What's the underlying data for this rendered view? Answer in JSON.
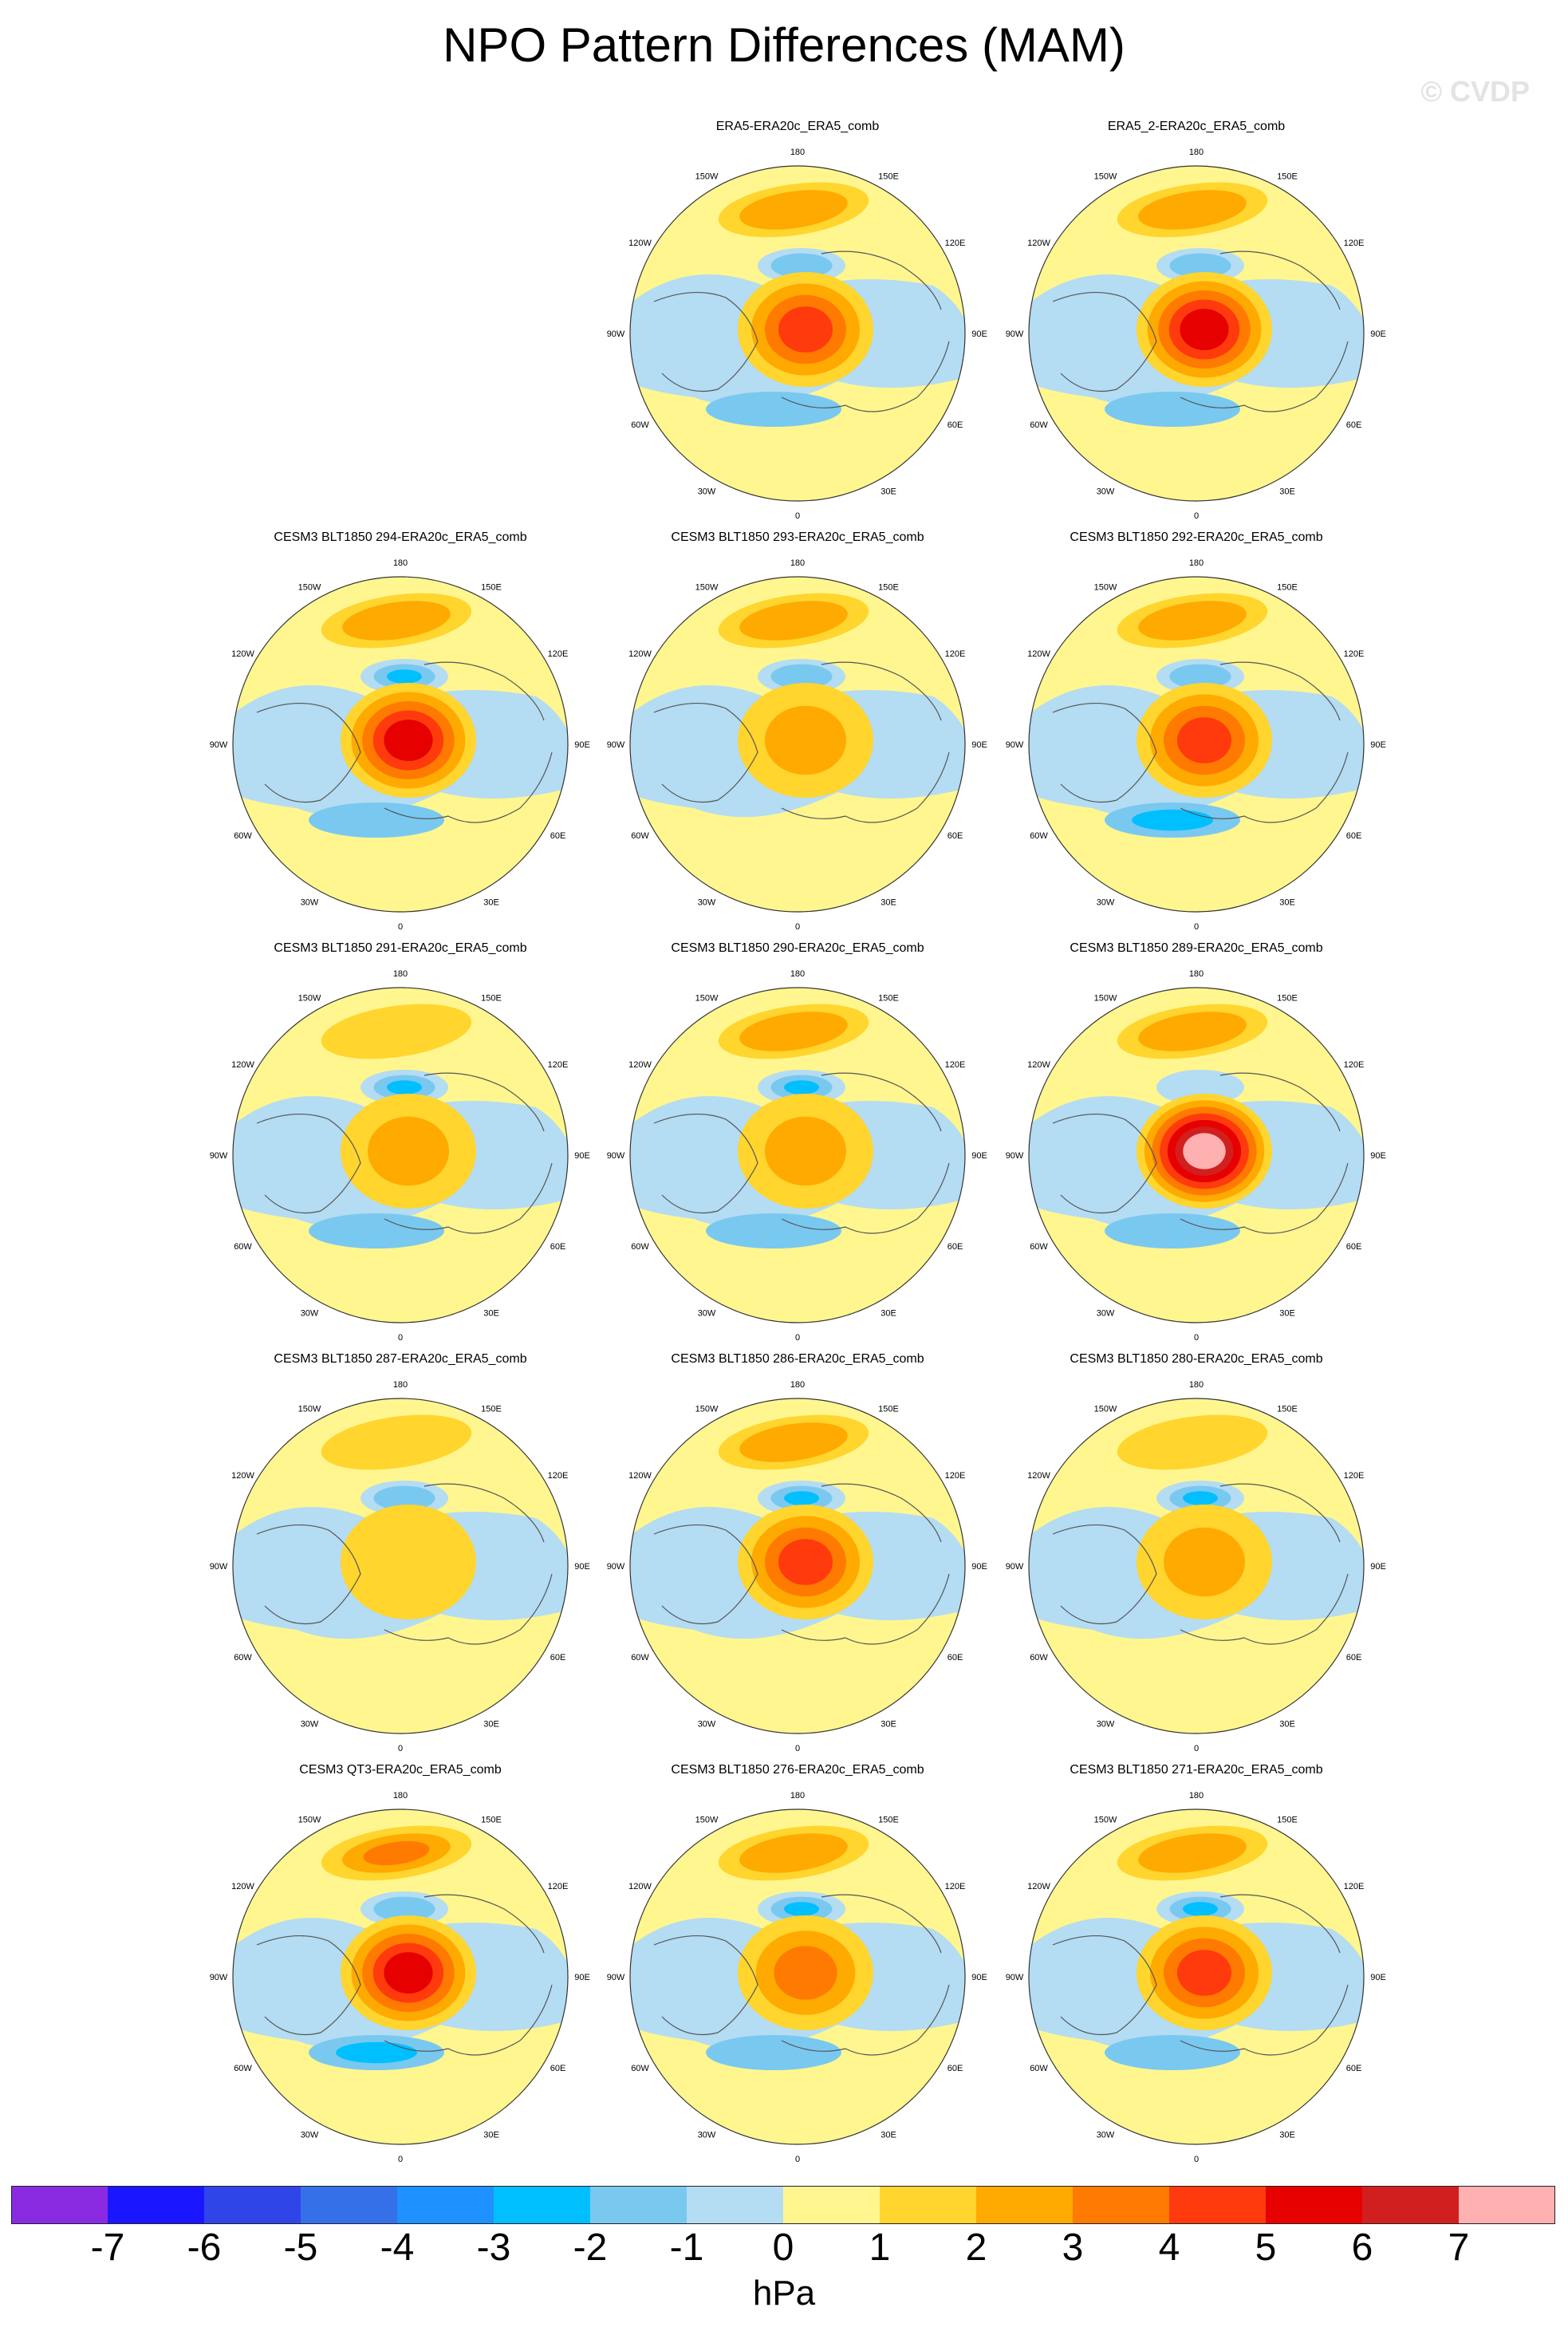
{
  "title": "NPO Pattern Differences (MAM)",
  "watermark": "© CVDP",
  "chart_data": {
    "type": "heatmap",
    "projection": "north polar stereographic",
    "season": "MAM",
    "units": "hPa",
    "longitude_labels": [
      "180",
      "150E",
      "120E",
      "90E",
      "60E",
      "30E",
      "0",
      "30W",
      "60W",
      "90W",
      "120W",
      "150W"
    ],
    "colorbar": {
      "tick_labels": [
        "-7",
        "-6",
        "-5",
        "-4",
        "-3",
        "-2",
        "-1",
        "0",
        "1",
        "2",
        "3",
        "4",
        "5",
        "6",
        "7"
      ],
      "colors": [
        "#8a2be2",
        "#1a16ff",
        "#2f45e8",
        "#3670e8",
        "#1e90ff",
        "#00bfff",
        "#79c8f0",
        "#b4dcf2",
        "#fff68f",
        "#ffd52e",
        "#ffaa00",
        "#ff7a00",
        "#ff3a0d",
        "#e60000",
        "#d11f1f",
        "#ffb0b0"
      ],
      "label": "hPa"
    },
    "panels": [
      {
        "title": "ERA5-ERA20c_ERA5_comb",
        "row": 0,
        "col": 1,
        "pacific_high": 2,
        "pacific_low": -2,
        "arctic_high": 4,
        "atlantic_low": -2
      },
      {
        "title": "ERA5_2-ERA20c_ERA5_comb",
        "row": 0,
        "col": 2,
        "pacific_high": 2,
        "pacific_low": -2,
        "arctic_high": 5,
        "atlantic_low": -2
      },
      {
        "title": "CESM3 BLT1850 294-ERA20c_ERA5_comb",
        "row": 1,
        "col": 0,
        "pacific_high": 2,
        "pacific_low": -3,
        "arctic_high": 5,
        "atlantic_low": -2
      },
      {
        "title": "CESM3 BLT1850 293-ERA20c_ERA5_comb",
        "row": 1,
        "col": 1,
        "pacific_high": 2,
        "pacific_low": -2,
        "arctic_high": 2,
        "atlantic_low": -1
      },
      {
        "title": "CESM3 BLT1850 292-ERA20c_ERA5_comb",
        "row": 1,
        "col": 2,
        "pacific_high": 2,
        "pacific_low": -2,
        "arctic_high": 4,
        "atlantic_low": -3
      },
      {
        "title": "CESM3 BLT1850 291-ERA20c_ERA5_comb",
        "row": 2,
        "col": 0,
        "pacific_high": 1,
        "pacific_low": -3,
        "arctic_high": 2,
        "atlantic_low": -2
      },
      {
        "title": "CESM3 BLT1850 290-ERA20c_ERA5_comb",
        "row": 2,
        "col": 1,
        "pacific_high": 2,
        "pacific_low": -3,
        "arctic_high": 2,
        "atlantic_low": -2
      },
      {
        "title": "CESM3 BLT1850 289-ERA20c_ERA5_comb",
        "row": 2,
        "col": 2,
        "pacific_high": 2,
        "pacific_low": -1,
        "arctic_high": 7,
        "atlantic_low": -2
      },
      {
        "title": "CESM3 BLT1850 287-ERA20c_ERA5_comb",
        "row": 3,
        "col": 0,
        "pacific_high": 1,
        "pacific_low": -2,
        "arctic_high": 1,
        "atlantic_low": -1
      },
      {
        "title": "CESM3 BLT1850 286-ERA20c_ERA5_comb",
        "row": 3,
        "col": 1,
        "pacific_high": 2,
        "pacific_low": -3,
        "arctic_high": 4,
        "atlantic_low": -1
      },
      {
        "title": "CESM3 BLT1850 280-ERA20c_ERA5_comb",
        "row": 3,
        "col": 2,
        "pacific_high": 1,
        "pacific_low": -3,
        "arctic_high": 2,
        "atlantic_low": -1
      },
      {
        "title": "CESM3 QT3-ERA20c_ERA5_comb",
        "row": 4,
        "col": 0,
        "pacific_high": 3,
        "pacific_low": -2,
        "arctic_high": 5,
        "atlantic_low": -3
      },
      {
        "title": "CESM3 BLT1850 276-ERA20c_ERA5_comb",
        "row": 4,
        "col": 1,
        "pacific_high": 2,
        "pacific_low": -3,
        "arctic_high": 3,
        "atlantic_low": -2
      },
      {
        "title": "CESM3 BLT1850 271-ERA20c_ERA5_comb",
        "row": 4,
        "col": 2,
        "pacific_high": 2,
        "pacific_low": -3,
        "arctic_high": 4,
        "atlantic_low": -2
      }
    ]
  }
}
